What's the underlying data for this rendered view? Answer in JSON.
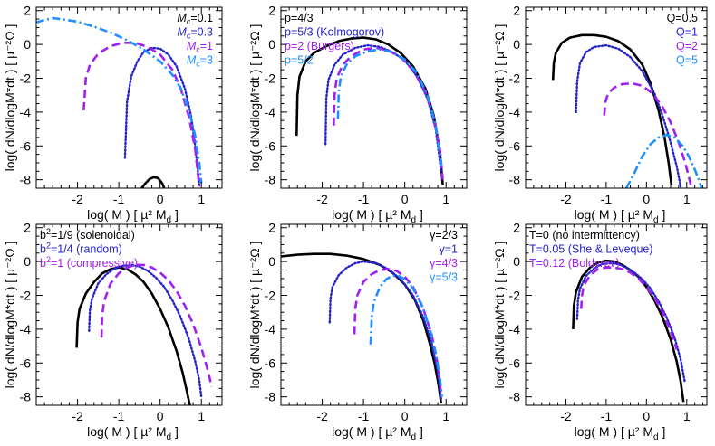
{
  "colors": {
    "black": "#000000",
    "indigo": "#2424c8",
    "violet": "#a020f0",
    "sky": "#1e90ff"
  },
  "axes_common": {
    "x_label": "log( M )   [ µ² M",
    "x_label_sub": "d",
    "x_label_end": " ]",
    "y_label": "log( dN/dlogM*dt )   [ µ⁻²Ω ]",
    "y_ticks": [
      2,
      0,
      -2,
      -4,
      -6,
      -8
    ],
    "y_tick_labels": [
      "2",
      "0",
      "-2",
      "-4",
      "-6",
      "-8"
    ],
    "x_ticks": [
      -2,
      -1,
      0,
      1
    ],
    "x_tick_labels": [
      "-2",
      "-1",
      "0",
      "1"
    ]
  },
  "chart_data": [
    {
      "type": "line",
      "panel": "top-left",
      "xlim": [
        -3,
        1.5
      ],
      "ylim": [
        -8.5,
        2.2
      ],
      "series": [
        {
          "name": "Mc=0.1",
          "label_main": "M",
          "label_sub": "c",
          "label_rest": "=0.1",
          "color": "black",
          "style": "solid",
          "x": [
            -0.45,
            -0.35,
            -0.25,
            -0.15,
            -0.05,
            0.05,
            0.1
          ],
          "y": [
            -8.5,
            -8.2,
            -7.95,
            -7.85,
            -7.9,
            -8.2,
            -8.5
          ]
        },
        {
          "name": "Mc=0.3",
          "label_main": "M",
          "label_sub": "c",
          "label_rest": "=0.3",
          "color": "indigo",
          "style": "dotted",
          "x": [
            -0.85,
            -0.8,
            -0.7,
            -0.55,
            -0.4,
            -0.2,
            0.0,
            0.2,
            0.4,
            0.6,
            0.75,
            0.85,
            0.95
          ],
          "y": [
            -6.7,
            -3.4,
            -1.9,
            -1.0,
            -0.45,
            -0.2,
            -0.25,
            -0.6,
            -1.3,
            -2.6,
            -4.2,
            -6.0,
            -8.3
          ]
        },
        {
          "name": "Mc=1",
          "label_main": "M",
          "label_sub": "c",
          "label_rest": "=1",
          "color": "violet",
          "style": "dashed",
          "x": [
            -1.85,
            -1.8,
            -1.7,
            -1.5,
            -1.2,
            -0.9,
            -0.6,
            -0.3,
            0.0,
            0.3,
            0.5,
            0.7,
            0.85,
            0.95
          ],
          "y": [
            -3.9,
            -2.0,
            -1.2,
            -0.55,
            -0.1,
            0.1,
            0.1,
            -0.15,
            -0.6,
            -1.5,
            -2.6,
            -4.3,
            -6.2,
            -8.4
          ]
        },
        {
          "name": "Mc=3",
          "label_main": "M",
          "label_sub": "c",
          "label_rest": "=3",
          "color": "sky",
          "style": "dashdot",
          "x": [
            -3.0,
            -2.8,
            -2.6,
            -2.4,
            -2.0,
            -1.6,
            -1.2,
            -0.8,
            -0.4,
            0.0,
            0.3,
            0.5,
            0.7,
            0.85,
            0.95,
            1.0
          ],
          "y": [
            1.3,
            1.45,
            1.55,
            1.5,
            1.35,
            1.05,
            0.7,
            0.25,
            -0.3,
            -1.0,
            -1.8,
            -2.6,
            -3.9,
            -5.4,
            -7.0,
            -8.2
          ]
        }
      ]
    },
    {
      "type": "line",
      "panel": "top-middle",
      "xlim": [
        -3,
        1.5
      ],
      "ylim": [
        -8.5,
        2.2
      ],
      "series": [
        {
          "name": "p=4/3",
          "color": "black",
          "style": "solid",
          "x": [
            -2.62,
            -2.6,
            -2.55,
            -2.4,
            -2.2,
            -1.9,
            -1.6,
            -1.3,
            -1.0,
            -0.7,
            -0.4,
            -0.1,
            0.2,
            0.5,
            0.7,
            0.85,
            0.92
          ],
          "y": [
            -5.4,
            -3.0,
            -1.9,
            -1.0,
            -0.5,
            -0.1,
            0.2,
            0.35,
            0.4,
            0.3,
            0.0,
            -0.5,
            -1.3,
            -2.6,
            -4.2,
            -6.3,
            -8.3
          ]
        },
        {
          "name": "p=5/3 (Kolmogorov)",
          "color": "indigo",
          "style": "dotted",
          "x": [
            -1.92,
            -1.9,
            -1.85,
            -1.7,
            -1.5,
            -1.2,
            -0.9,
            -0.6,
            -0.3,
            0.0,
            0.3,
            0.55,
            0.75,
            0.88
          ],
          "y": [
            -5.9,
            -3.2,
            -2.1,
            -1.2,
            -0.6,
            -0.2,
            -0.05,
            -0.15,
            -0.45,
            -0.95,
            -1.9,
            -3.2,
            -5.0,
            -7.5
          ]
        },
        {
          "name": "p=2 (Burgers)",
          "color": "violet",
          "style": "dashed",
          "x": [
            -1.72,
            -1.7,
            -1.65,
            -1.5,
            -1.3,
            -1.0,
            -0.7,
            -0.4,
            -0.1,
            0.2,
            0.5,
            0.7,
            0.85,
            0.92
          ],
          "y": [
            -4.8,
            -3.0,
            -2.0,
            -1.2,
            -0.7,
            -0.3,
            -0.2,
            -0.35,
            -0.75,
            -1.5,
            -2.8,
            -4.3,
            -6.2,
            -8.0
          ]
        },
        {
          "name": "p=5/2",
          "color": "sky",
          "style": "dashdot",
          "x": [
            -1.62,
            -1.6,
            -1.55,
            -1.4,
            -1.2,
            -0.9,
            -0.6,
            -0.3,
            0.0,
            0.3,
            0.55,
            0.75,
            0.9
          ],
          "y": [
            -4.4,
            -2.8,
            -1.9,
            -1.15,
            -0.7,
            -0.4,
            -0.3,
            -0.45,
            -0.9,
            -1.7,
            -3.0,
            -4.8,
            -7.4
          ]
        }
      ]
    },
    {
      "type": "line",
      "panel": "top-right",
      "xlim": [
        -3,
        1.5
      ],
      "ylim": [
        -8.5,
        2.2
      ],
      "series": [
        {
          "name": "Q=0.5",
          "color": "black",
          "style": "solid",
          "x": [
            -2.32,
            -2.3,
            -2.25,
            -2.1,
            -1.9,
            -1.6,
            -1.3,
            -1.0,
            -0.7,
            -0.4,
            -0.1,
            0.1,
            0.3,
            0.45,
            0.55,
            0.62
          ],
          "y": [
            -2.1,
            -1.1,
            -0.5,
            0.1,
            0.4,
            0.55,
            0.55,
            0.45,
            0.2,
            -0.3,
            -1.2,
            -2.3,
            -3.9,
            -5.5,
            -7.0,
            -8.3
          ]
        },
        {
          "name": "Q=1",
          "color": "indigo",
          "style": "dotted",
          "x": [
            -1.75,
            -1.72,
            -1.65,
            -1.5,
            -1.3,
            -1.0,
            -0.7,
            -0.4,
            -0.1,
            0.2,
            0.4,
            0.6,
            0.75,
            0.85
          ],
          "y": [
            -4.0,
            -2.2,
            -1.1,
            -0.45,
            -0.15,
            -0.05,
            -0.25,
            -0.75,
            -1.6,
            -2.9,
            -4.2,
            -5.8,
            -7.2,
            -8.4
          ]
        },
        {
          "name": "Q=2",
          "color": "violet",
          "style": "dashed",
          "x": [
            -1.05,
            -1.02,
            -0.95,
            -0.8,
            -0.6,
            -0.35,
            -0.1,
            0.15,
            0.4,
            0.6,
            0.8,
            0.95,
            1.05,
            1.12
          ],
          "y": [
            -4.2,
            -3.4,
            -2.9,
            -2.55,
            -2.35,
            -2.3,
            -2.45,
            -2.9,
            -3.7,
            -4.6,
            -5.8,
            -6.9,
            -7.8,
            -8.5
          ]
        },
        {
          "name": "Q=5",
          "color": "sky",
          "style": "dashdot",
          "x": [
            -0.5,
            -0.3,
            -0.1,
            0.1,
            0.3,
            0.5,
            0.7,
            0.9,
            1.05,
            1.2,
            1.3,
            1.37
          ],
          "y": [
            -8.5,
            -7.6,
            -6.6,
            -5.9,
            -5.5,
            -5.35,
            -5.5,
            -6.0,
            -6.6,
            -7.4,
            -8.0,
            -8.5
          ]
        }
      ]
    },
    {
      "type": "line",
      "panel": "bottom-left",
      "xlim": [
        -3,
        1.5
      ],
      "ylim": [
        -8.5,
        2.2
      ],
      "series": [
        {
          "name": "b²=1/9 (solenoidal)",
          "label_main": "b",
          "label_sup": "2",
          "label_rest": "=1/9 (solenoidal)",
          "color": "black",
          "style": "solid",
          "x": [
            -2.02,
            -2.0,
            -1.95,
            -1.8,
            -1.6,
            -1.4,
            -1.2,
            -1.0,
            -0.8,
            -0.6,
            -0.4,
            -0.2,
            0.0,
            0.2,
            0.4,
            0.55,
            0.65,
            0.72
          ],
          "y": [
            -5.1,
            -3.6,
            -2.8,
            -1.9,
            -1.2,
            -0.7,
            -0.45,
            -0.35,
            -0.45,
            -0.75,
            -1.2,
            -1.9,
            -2.8,
            -3.9,
            -5.3,
            -6.6,
            -7.7,
            -8.5
          ]
        },
        {
          "name": "b²=1/4 (random)",
          "label_main": "b",
          "label_sup": "2",
          "label_rest": "=1/4 (random)",
          "color": "indigo",
          "style": "dotted",
          "x": [
            -1.72,
            -1.7,
            -1.65,
            -1.5,
            -1.3,
            -1.1,
            -0.9,
            -0.7,
            -0.5,
            -0.3,
            -0.1,
            0.1,
            0.3,
            0.5,
            0.7,
            0.85,
            0.95,
            1.0
          ],
          "y": [
            -4.1,
            -2.9,
            -2.2,
            -1.3,
            -0.75,
            -0.4,
            -0.25,
            -0.2,
            -0.3,
            -0.55,
            -0.95,
            -1.5,
            -2.3,
            -3.3,
            -4.6,
            -5.9,
            -7.0,
            -8.0
          ]
        },
        {
          "name": "b²=1 (compressive)",
          "label_main": "b",
          "label_sup": "2",
          "label_rest": "=1 (compressive)",
          "color": "violet",
          "style": "dashed",
          "x": [
            -1.42,
            -1.4,
            -1.35,
            -1.2,
            -1.0,
            -0.8,
            -0.6,
            -0.4,
            -0.2,
            0.0,
            0.2,
            0.4,
            0.6,
            0.8,
            1.0,
            1.15,
            1.25
          ],
          "y": [
            -4.5,
            -3.1,
            -2.3,
            -1.3,
            -0.7,
            -0.35,
            -0.2,
            -0.2,
            -0.35,
            -0.65,
            -1.1,
            -1.75,
            -2.6,
            -3.7,
            -5.1,
            -6.4,
            -7.4
          ]
        }
      ]
    },
    {
      "type": "line",
      "panel": "bottom-middle",
      "xlim": [
        -3,
        1.5
      ],
      "ylim": [
        -8.5,
        2.2
      ],
      "series": [
        {
          "name": "γ=2/3",
          "color": "black",
          "style": "solid",
          "x": [
            -3.0,
            -2.6,
            -2.2,
            -1.8,
            -1.4,
            -1.0,
            -0.6,
            -0.3,
            0.0,
            0.25,
            0.45,
            0.6,
            0.72,
            0.82,
            0.88
          ],
          "y": [
            0.3,
            0.4,
            0.45,
            0.45,
            0.35,
            0.15,
            -0.2,
            -0.65,
            -1.35,
            -2.3,
            -3.5,
            -4.8,
            -6.0,
            -7.3,
            -8.4
          ]
        },
        {
          "name": "γ=1",
          "color": "indigo",
          "style": "dotted",
          "x": [
            -1.82,
            -1.8,
            -1.75,
            -1.6,
            -1.4,
            -1.2,
            -1.0,
            -0.7,
            -0.4,
            -0.1,
            0.2,
            0.45,
            0.65,
            0.8,
            0.88
          ],
          "y": [
            -3.6,
            -2.2,
            -1.5,
            -0.8,
            -0.35,
            -0.1,
            0.0,
            -0.1,
            -0.45,
            -1.05,
            -2.0,
            -3.3,
            -4.8,
            -6.5,
            -8.1
          ]
        },
        {
          "name": "γ=4/3",
          "color": "violet",
          "style": "dashed",
          "x": [
            -1.22,
            -1.2,
            -1.15,
            -1.0,
            -0.8,
            -0.6,
            -0.4,
            -0.2,
            0.0,
            0.2,
            0.45,
            0.65,
            0.8,
            0.88
          ],
          "y": [
            -4.3,
            -2.8,
            -2.0,
            -1.2,
            -0.75,
            -0.5,
            -0.45,
            -0.55,
            -0.9,
            -1.5,
            -2.8,
            -4.3,
            -6.1,
            -7.9
          ]
        },
        {
          "name": "γ=5/3",
          "color": "sky",
          "style": "dashdot",
          "x": [
            -0.83,
            -0.8,
            -0.75,
            -0.6,
            -0.45,
            -0.3,
            -0.15,
            0.0,
            0.2,
            0.4,
            0.6,
            0.75,
            0.85,
            0.9
          ],
          "y": [
            -4.9,
            -3.3,
            -2.4,
            -1.5,
            -1.05,
            -0.85,
            -0.85,
            -1.05,
            -1.6,
            -2.5,
            -3.9,
            -5.4,
            -6.9,
            -8.0
          ]
        }
      ]
    },
    {
      "type": "line",
      "panel": "bottom-right",
      "xlim": [
        -3,
        1.5
      ],
      "ylim": [
        -8.5,
        2.2
      ],
      "series": [
        {
          "name": "T=0 (no intermittency)",
          "color": "black",
          "style": "solid",
          "x": [
            -1.82,
            -1.8,
            -1.75,
            -1.6,
            -1.4,
            -1.2,
            -1.0,
            -0.8,
            -0.6,
            -0.4,
            -0.2,
            0.0,
            0.2,
            0.4,
            0.6,
            0.75,
            0.85,
            0.92
          ],
          "y": [
            -4.0,
            -2.6,
            -1.8,
            -0.9,
            -0.35,
            -0.05,
            0.05,
            0.0,
            -0.2,
            -0.5,
            -0.9,
            -1.5,
            -2.3,
            -3.3,
            -4.6,
            -5.9,
            -7.1,
            -8.3
          ]
        },
        {
          "name": "T=0.05 (She & Leveque)",
          "color": "indigo",
          "style": "dotted",
          "x": [
            -1.72,
            -1.7,
            -1.65,
            -1.5,
            -1.3,
            -1.1,
            -0.9,
            -0.7,
            -0.5,
            -0.3,
            -0.1,
            0.1,
            0.3,
            0.5,
            0.7,
            0.85,
            0.95
          ],
          "y": [
            -3.4,
            -2.3,
            -1.6,
            -0.85,
            -0.4,
            -0.15,
            -0.1,
            -0.15,
            -0.35,
            -0.65,
            -1.05,
            -1.6,
            -2.35,
            -3.3,
            -4.5,
            -5.8,
            -7.1
          ]
        },
        {
          "name": "T=0.12 (Boldyrev)",
          "color": "violet",
          "style": "dashed",
          "x": [
            -1.62,
            -1.6,
            -1.55,
            -1.4,
            -1.2,
            -1.0,
            -0.8,
            -0.6,
            -0.4,
            -0.2,
            0.0,
            0.2,
            0.4,
            0.6,
            0.75
          ],
          "y": [
            -2.8,
            -2.0,
            -1.4,
            -0.8,
            -0.45,
            -0.35,
            -0.35,
            -0.45,
            -0.65,
            -1.0,
            -1.5,
            -2.15,
            -3.0,
            -4.1,
            -5.2
          ]
        }
      ]
    }
  ]
}
